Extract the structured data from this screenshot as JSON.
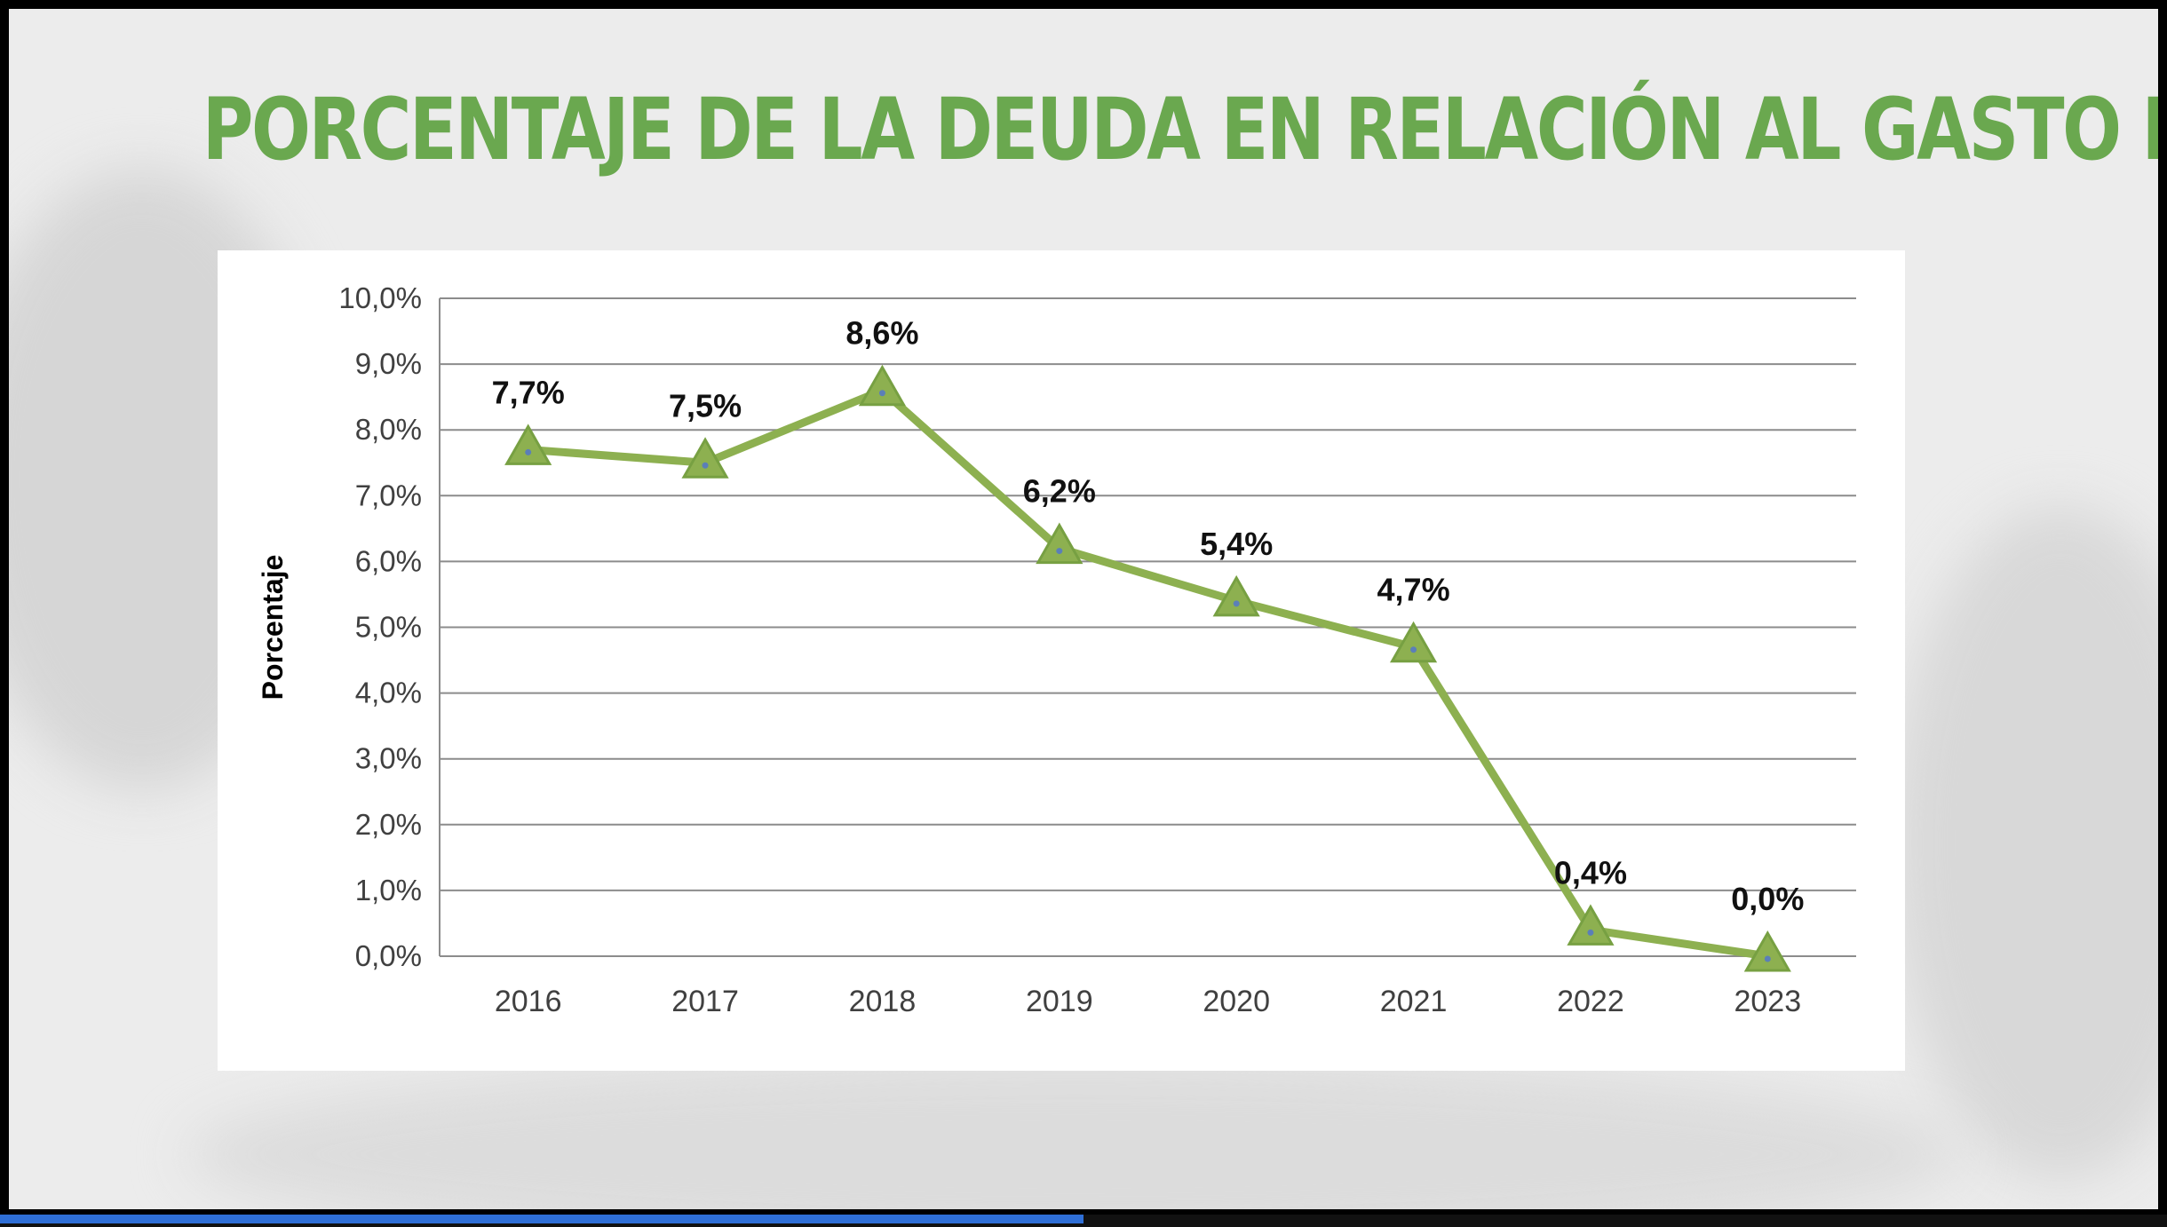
{
  "slide": {
    "title": "PORCENTAJE DE LA DEUDA EN RELACIÓN AL GASTO EJECUTADO",
    "title_color": "#6aa84f"
  },
  "playback": {
    "progress_color": "#2f6fd6",
    "progress": 0.5
  },
  "chart_data": {
    "type": "line",
    "title": "",
    "xlabel": "",
    "ylabel": "Porcentaje",
    "categories": [
      "2016",
      "2017",
      "2018",
      "2019",
      "2020",
      "2021",
      "2022",
      "2023"
    ],
    "series": [
      {
        "values": [
          7.7,
          7.5,
          8.6,
          6.2,
          5.4,
          4.7,
          0.4,
          0.0
        ],
        "labels": [
          "7,7%",
          "7,5%",
          "8,6%",
          "6,2%",
          "5,4%",
          "4,7%",
          "0,4%",
          "0,0%"
        ],
        "color": "#8db050",
        "marker": "triangle"
      }
    ],
    "ylim": [
      0,
      10
    ],
    "yticks": [
      "0,0%",
      "1,0%",
      "2,0%",
      "3,0%",
      "4,0%",
      "5,0%",
      "6,0%",
      "7,0%",
      "8,0%",
      "9,0%",
      "10,0%"
    ],
    "grid": true,
    "legend": "none"
  }
}
